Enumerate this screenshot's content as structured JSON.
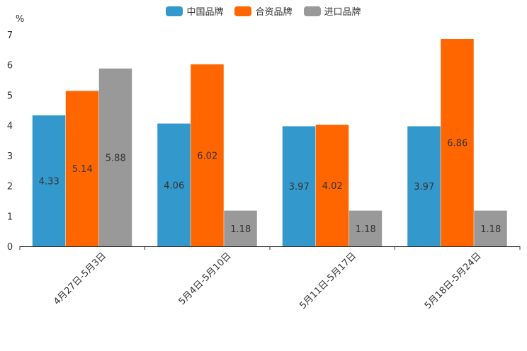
{
  "chart_data": {
    "type": "bar",
    "unit": "%",
    "categories": [
      "4月27日-5月3日",
      "5月4日-5月10日",
      "5月11日-5月17日",
      "5月18日-5月24日"
    ],
    "series": [
      {
        "name": "中国品牌",
        "color": "#3399cc",
        "values": [
          4.33,
          4.06,
          3.97,
          3.97
        ]
      },
      {
        "name": "合资品牌",
        "color": "#ff6600",
        "values": [
          5.14,
          6.02,
          4.02,
          6.86
        ]
      },
      {
        "name": "进口品牌",
        "color": "#999999",
        "values": [
          5.88,
          1.18,
          1.18,
          1.18
        ]
      }
    ],
    "ylim": [
      0,
      7
    ],
    "yticks": [
      "0",
      "1",
      "2",
      "3",
      "4",
      "5",
      "6",
      "7"
    ],
    "legend_position": "top-center",
    "grid": false
  }
}
